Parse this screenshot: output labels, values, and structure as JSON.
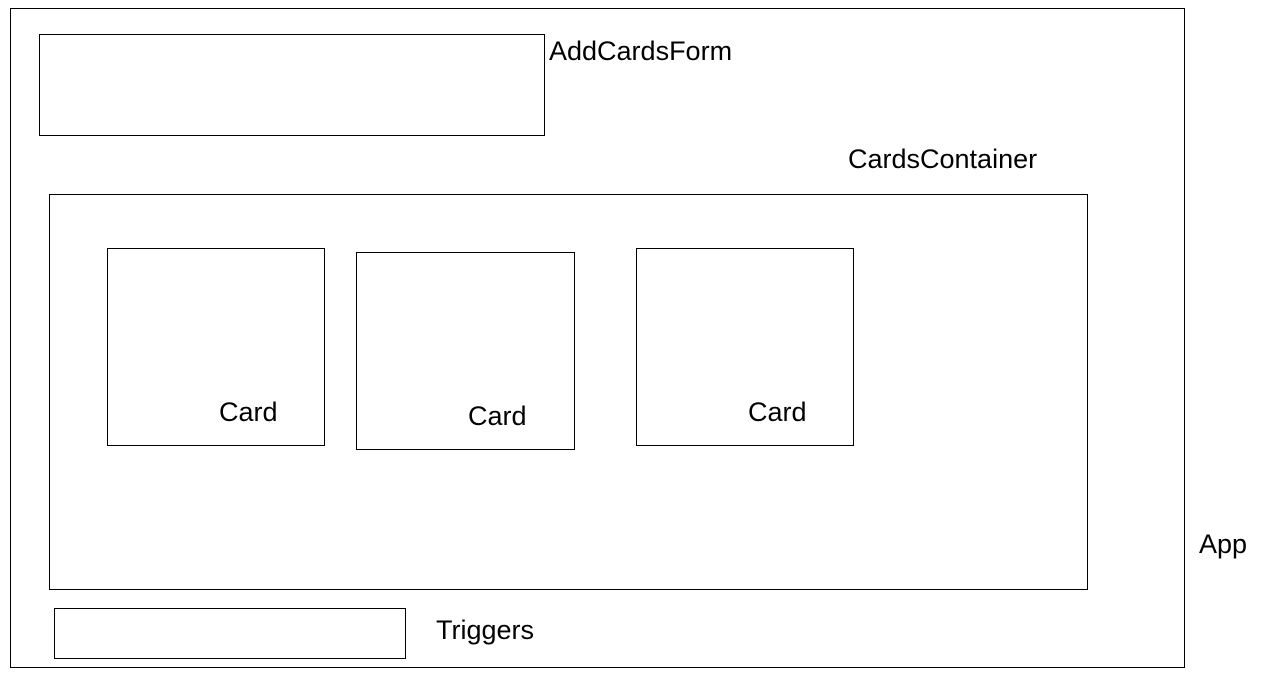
{
  "app": {
    "label": "App"
  },
  "add_cards_form": {
    "label": "AddCardsForm"
  },
  "cards_container": {
    "label": "CardsContainer",
    "cards": [
      {
        "label": "Card"
      },
      {
        "label": "Card"
      },
      {
        "label": "Card"
      }
    ]
  },
  "triggers": {
    "label": "Triggers"
  },
  "colors": {
    "stroke": "#000000",
    "background": "#ffffff"
  }
}
